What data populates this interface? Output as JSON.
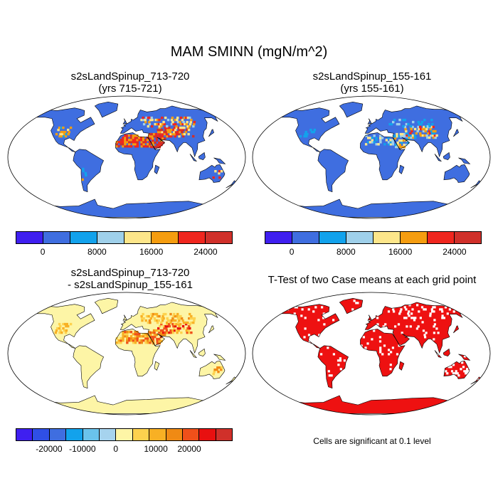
{
  "title": "MAM SMINN (mgN/m^2)",
  "panels": [
    {
      "title_line1": "s2sLandSpinup_713-720",
      "title_line2": "(yrs 715-721)"
    },
    {
      "title_line1": "s2sLandSpinup_155-161",
      "title_line2": "(yrs 155-161)"
    },
    {
      "title_line1": "s2sLandSpinup_713-720",
      "title_line2": "- s2sLandSpinup_155-161"
    },
    {
      "title_line1": "T-Test of two Case means at each grid point",
      "title_line2": ""
    }
  ],
  "colorbar_abs": {
    "colors": [
      "#3f1ff0",
      "#3f6ee0",
      "#12a2ec",
      "#9fd0ea",
      "#fde68a",
      "#f59d10",
      "#f0261e",
      "#d0302a"
    ],
    "tick_labels": [
      "0",
      "8000",
      "16000",
      "24000"
    ]
  },
  "colorbar_diff": {
    "colors": [
      "#3f1ff0",
      "#2f4fe6",
      "#3f6ee0",
      "#12a2ec",
      "#6ac3ec",
      "#a6d3ee",
      "#fdf5a6",
      "#fdd24e",
      "#f8b024",
      "#f08a14",
      "#f0501a",
      "#e81010",
      "#d0302a"
    ],
    "tick_labels": [
      "-20000",
      "-10000",
      "0",
      "10000",
      "20000"
    ]
  },
  "significance_note": "Cells are significant at 0.1 level",
  "colors": {
    "base_abs": "#3f6ee0",
    "base_diff": "#fdf5a6",
    "ttest": "#ee1111",
    "ocean": "#ffffff"
  }
}
